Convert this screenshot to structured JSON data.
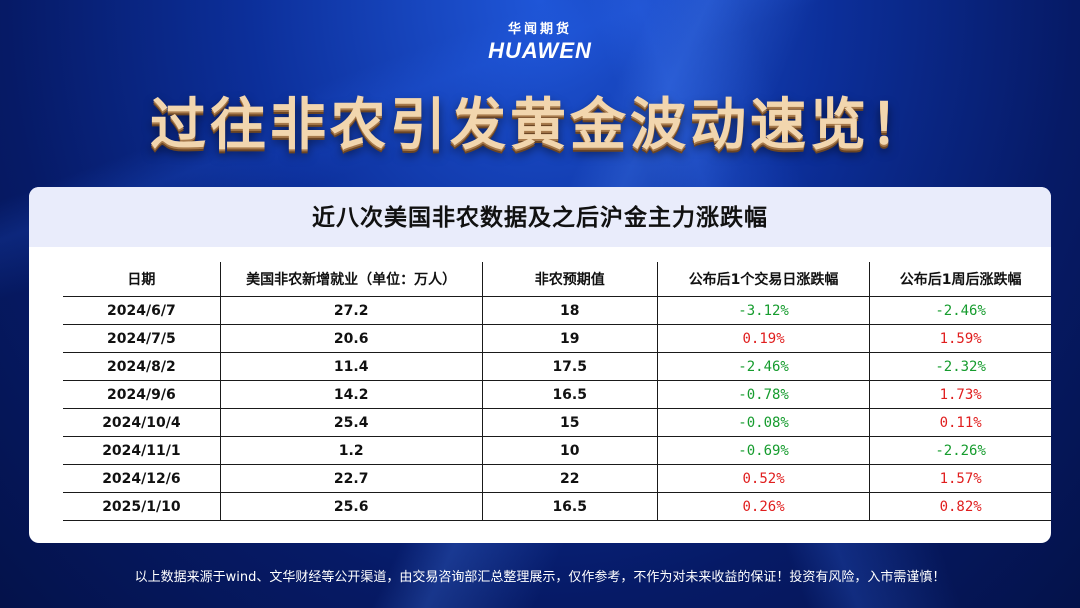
{
  "brand": {
    "cn": "华闻期货",
    "en": "HUAWEN"
  },
  "headline": "过往非农引发黄金波动速览！",
  "table": {
    "title": "近八次美国非农数据及之后沪金主力涨跌幅",
    "headers": [
      "日期",
      "美国非农新增就业（单位：万人）",
      "非农预期值",
      "公布后1个交易日涨跌幅",
      "公布后1周后涨跌幅"
    ],
    "rows": [
      {
        "date": "2024/6/7",
        "nfp": "27.2",
        "expected": "18",
        "day1": "-3.12%",
        "week1": "-2.46%"
      },
      {
        "date": "2024/7/5",
        "nfp": "20.6",
        "expected": "19",
        "day1": "0.19%",
        "week1": "1.59%"
      },
      {
        "date": "2024/8/2",
        "nfp": "11.4",
        "expected": "17.5",
        "day1": "-2.46%",
        "week1": "-2.32%"
      },
      {
        "date": "2024/9/6",
        "nfp": "14.2",
        "expected": "16.5",
        "day1": "-0.78%",
        "week1": "1.73%"
      },
      {
        "date": "2024/10/4",
        "nfp": "25.4",
        "expected": "15",
        "day1": "-0.08%",
        "week1": "0.11%"
      },
      {
        "date": "2024/11/1",
        "nfp": "1.2",
        "expected": "10",
        "day1": "-0.69%",
        "week1": "-2.26%"
      },
      {
        "date": "2024/12/6",
        "nfp": "22.7",
        "expected": "22",
        "day1": "0.52%",
        "week1": "1.57%"
      },
      {
        "date": "2025/1/10",
        "nfp": "25.6",
        "expected": "16.5",
        "day1": "0.26%",
        "week1": "0.82%"
      }
    ]
  },
  "colors": {
    "positive": "#e01e1e",
    "negative": "#169c2e"
  },
  "footer": "以上数据来源于wind、文华财经等公开渠道，由交易咨询部汇总整理展示，仅作参考，不作为对未来收益的保证！投资有风险，入市需谨慎！"
}
